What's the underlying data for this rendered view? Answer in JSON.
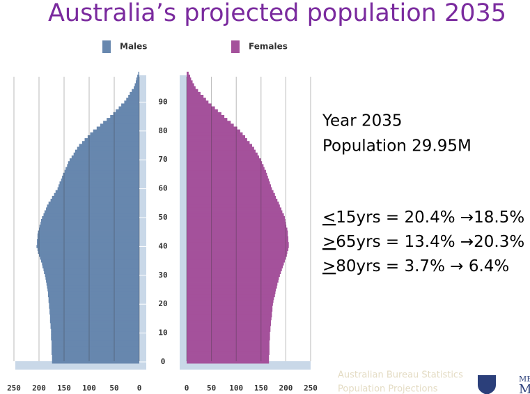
{
  "chart_data": {
    "type": "pyramid",
    "title": "Australia’s projected population 2035",
    "ages": [
      0,
      1,
      2,
      3,
      4,
      5,
      6,
      7,
      8,
      9,
      10,
      11,
      12,
      13,
      14,
      15,
      16,
      17,
      18,
      19,
      20,
      21,
      22,
      23,
      24,
      25,
      26,
      27,
      28,
      29,
      30,
      31,
      32,
      33,
      34,
      35,
      36,
      37,
      38,
      39,
      40,
      41,
      42,
      43,
      44,
      45,
      46,
      47,
      48,
      49,
      50,
      51,
      52,
      53,
      54,
      55,
      56,
      57,
      58,
      59,
      60,
      61,
      62,
      63,
      64,
      65,
      66,
      67,
      68,
      69,
      70,
      71,
      72,
      73,
      74,
      75,
      76,
      77,
      78,
      79,
      80,
      81,
      82,
      83,
      84,
      85,
      86,
      87,
      88,
      89,
      90,
      91,
      92,
      93,
      94,
      95,
      96,
      97,
      98,
      99,
      100
    ],
    "agelim": [
      0,
      100
    ],
    "ageticks": [
      0,
      10,
      20,
      30,
      40,
      50,
      60,
      70,
      80,
      90
    ],
    "series": [
      {
        "name": "Males",
        "color": "#6787ae",
        "side": "left",
        "values": [
          174,
          174,
          174,
          175,
          175,
          175,
          175,
          175,
          176,
          176,
          176,
          176,
          177,
          177,
          178,
          178,
          178,
          179,
          179,
          180,
          180,
          181,
          181,
          182,
          182,
          183,
          184,
          185,
          186,
          187,
          188,
          190,
          191,
          193,
          194,
          196,
          198,
          200,
          202,
          203,
          205,
          204,
          204,
          203,
          203,
          202,
          200,
          199,
          197,
          196,
          194,
          191,
          189,
          186,
          184,
          181,
          177,
          174,
          170,
          167,
          163,
          161,
          159,
          156,
          154,
          152,
          149,
          147,
          144,
          142,
          139,
          135,
          131,
          128,
          124,
          120,
          114,
          109,
          103,
          98,
          92,
          85,
          78,
          72,
          65,
          58,
          52,
          47,
          41,
          36,
          30,
          26,
          22,
          19,
          15,
          11,
          9,
          7,
          6,
          4,
          2
        ]
      },
      {
        "name": "Females",
        "color": "#a4519b",
        "side": "right",
        "values": [
          166,
          166,
          166,
          167,
          167,
          167,
          167,
          167,
          168,
          168,
          168,
          169,
          169,
          170,
          170,
          171,
          172,
          172,
          173,
          173,
          174,
          175,
          176,
          178,
          179,
          180,
          182,
          183,
          185,
          186,
          188,
          190,
          192,
          194,
          196,
          198,
          200,
          202,
          203,
          205,
          206,
          206,
          205,
          205,
          204,
          204,
          203,
          201,
          200,
          199,
          198,
          196,
          193,
          191,
          188,
          186,
          183,
          180,
          178,
          175,
          172,
          170,
          168,
          166,
          164,
          162,
          160,
          157,
          155,
          152,
          150,
          146,
          143,
          139,
          136,
          132,
          127,
          122,
          118,
          113,
          108,
          102,
          95,
          89,
          82,
          76,
          70,
          63,
          57,
          50,
          44,
          39,
          34,
          28,
          23,
          18,
          15,
          12,
          9,
          7,
          4
        ]
      }
    ],
    "xlim": [
      0,
      250
    ],
    "xticks": [
      0,
      50,
      100,
      150,
      200,
      250
    ],
    "grid": true,
    "info": {
      "lines": [
        "Year 2035",
        "Population 29.95M"
      ],
      "stats": [
        {
          "sign": "<",
          "text": "15yrs = 20.4% →18.5%"
        },
        {
          "sign": ">",
          "text": "65yrs = 13.4% →20.3%"
        },
        {
          "sign": ">",
          "text": "80yrs =   3.7% →  6.4%"
        }
      ]
    },
    "source": [
      "Australian Bureau Statistics",
      "Population Projections"
    ],
    "logo_text": [
      "ME",
      "M"
    ]
  }
}
